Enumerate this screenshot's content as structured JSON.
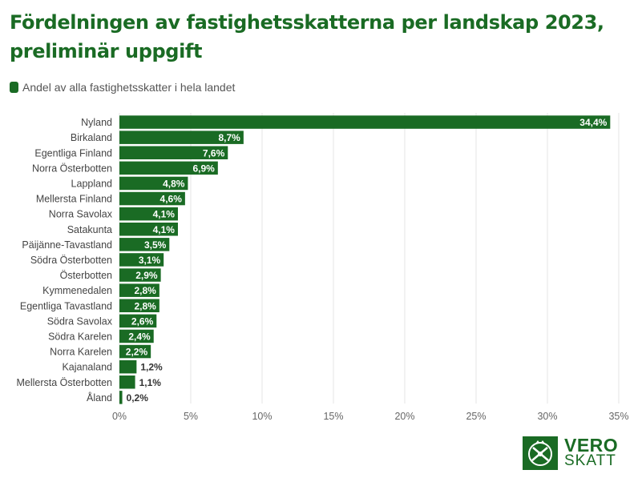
{
  "title": "Fördelningen av fastighetsskatterna per landskap 2023, preliminär uppgift",
  "legend": {
    "label": "Andel av alla fastighetsskatter i hela landet"
  },
  "colors": {
    "bar": "#1a6b24",
    "grid": "#e6e6e6",
    "brand": "#1a6b24"
  },
  "logo": {
    "line1": "VERO",
    "line2": "SKATT",
    "icon": "vero-emblem-icon"
  },
  "chart_data": {
    "type": "bar",
    "orientation": "horizontal",
    "title": "Fördelningen av fastighetsskatterna per landskap 2023, preliminär uppgift",
    "legend_position": "top-left",
    "grid": true,
    "categories": [
      "Nyland",
      "Birkaland",
      "Egentliga Finland",
      "Norra Österbotten",
      "Lappland",
      "Mellersta Finland",
      "Norra Savolax",
      "Satakunta",
      "Päijänne-Tavastland",
      "Södra Österbotten",
      "Österbotten",
      "Kymmenedalen",
      "Egentliga Tavastland",
      "Södra Savolax",
      "Södra Karelen",
      "Norra Karelen",
      "Kajanaland",
      "Mellersta Österbotten",
      "Åland"
    ],
    "series": [
      {
        "name": "Andel av alla fastighetsskatter i hela landet",
        "values": [
          34.4,
          8.7,
          7.6,
          6.9,
          4.8,
          4.6,
          4.1,
          4.1,
          3.5,
          3.1,
          2.9,
          2.8,
          2.8,
          2.6,
          2.4,
          2.2,
          1.2,
          1.1,
          0.2
        ]
      }
    ],
    "value_labels": [
      "34,4%",
      "8,7%",
      "7,6%",
      "6,9%",
      "4,8%",
      "4,6%",
      "4,1%",
      "4,1%",
      "3,5%",
      "3,1%",
      "2,9%",
      "2,8%",
      "2,8%",
      "2,6%",
      "2,4%",
      "2,2%",
      "1,2%",
      "1,1%",
      "0,2%"
    ],
    "xlim": [
      0,
      35
    ],
    "xticks": [
      0,
      5,
      10,
      15,
      20,
      25,
      30,
      35
    ],
    "xtick_labels": [
      "0%",
      "5%",
      "10%",
      "15%",
      "20%",
      "25%",
      "30%",
      "35%"
    ]
  }
}
